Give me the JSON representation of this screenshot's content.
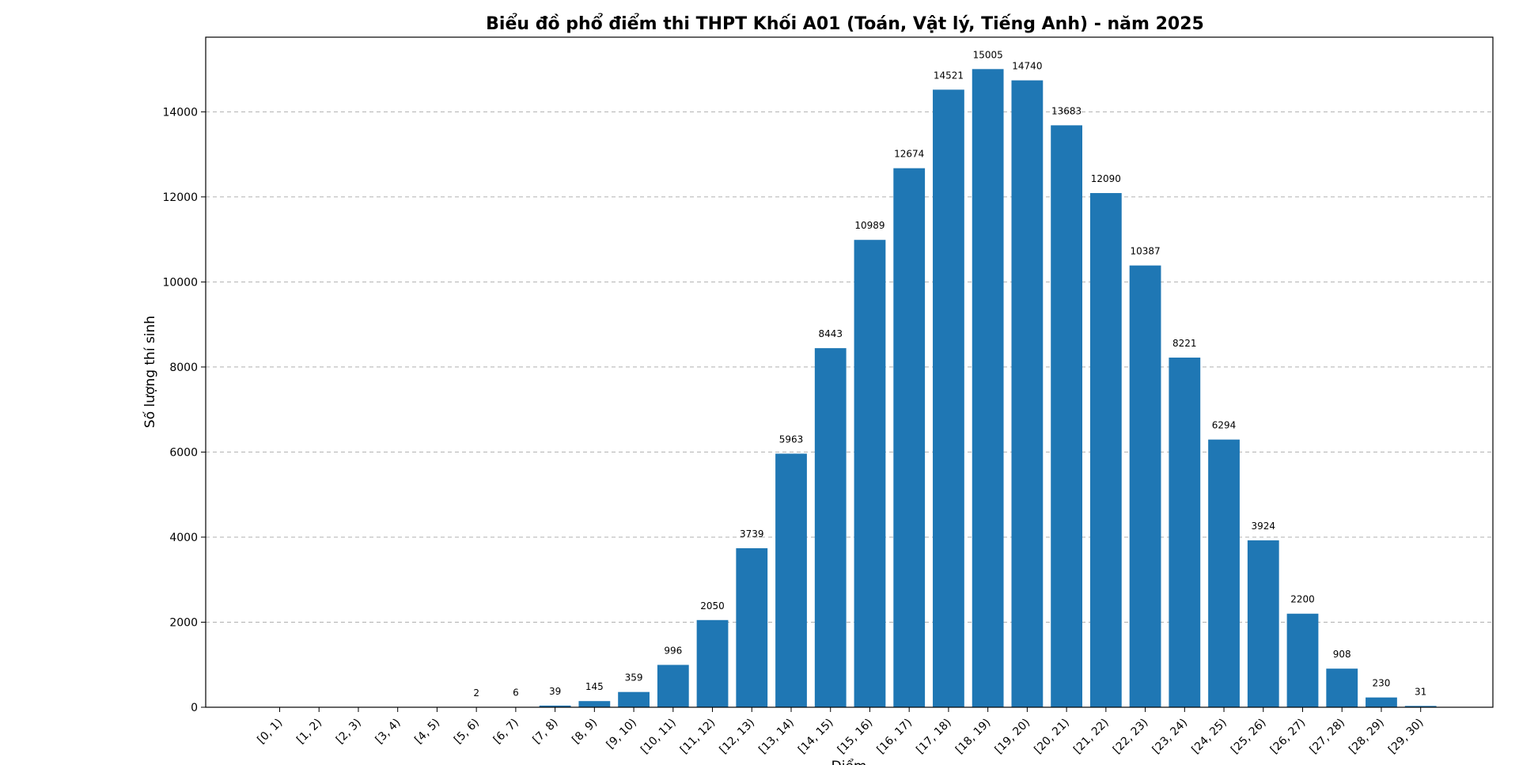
{
  "chart_data": {
    "type": "bar",
    "title": "Biểu đồ phổ điểm thi THPT Khối A01 (Toán, Vật lý, Tiếng Anh) - năm 2025",
    "xlabel": "Điểm",
    "ylabel": "Số lượng thí sinh",
    "categories": [
      "[0, 1)",
      "[1, 2)",
      "[2, 3)",
      "[3, 4)",
      "[4, 5)",
      "[5, 6)",
      "[6, 7)",
      "[7, 8)",
      "[8, 9)",
      "[9, 10)",
      "[10, 11)",
      "[11, 12)",
      "[12, 13)",
      "[13, 14)",
      "[14, 15)",
      "[15, 16)",
      "[16, 17)",
      "[17, 18)",
      "[18, 19)",
      "[19, 20)",
      "[20, 21)",
      "[21, 22)",
      "[22, 23)",
      "[23, 24)",
      "[24, 25)",
      "[25, 26)",
      "[26, 27)",
      "[27, 28)",
      "[28, 29)",
      "[29, 30)"
    ],
    "values": [
      0,
      0,
      0,
      0,
      0,
      2,
      6,
      39,
      145,
      359,
      996,
      2050,
      3739,
      5963,
      8443,
      10989,
      12674,
      14521,
      15005,
      14740,
      13683,
      12090,
      10387,
      8221,
      6294,
      3924,
      2200,
      908,
      230,
      31
    ],
    "data_labels": [
      "",
      "",
      "",
      "",
      "",
      "2",
      "6",
      "39",
      "145",
      "359",
      "996",
      "2050",
      "3739",
      "5963",
      "8443",
      "10989",
      "12674",
      "14521",
      "15005",
      "14740",
      "13683",
      "12090",
      "10387",
      "8221",
      "6294",
      "3924",
      "2200",
      "908",
      "230",
      "31"
    ],
    "yticks": [
      0,
      2000,
      4000,
      6000,
      8000,
      10000,
      12000,
      14000
    ],
    "ylim": [
      0,
      15755
    ],
    "grid": "y, dashed",
    "color": "#1f77b4"
  }
}
